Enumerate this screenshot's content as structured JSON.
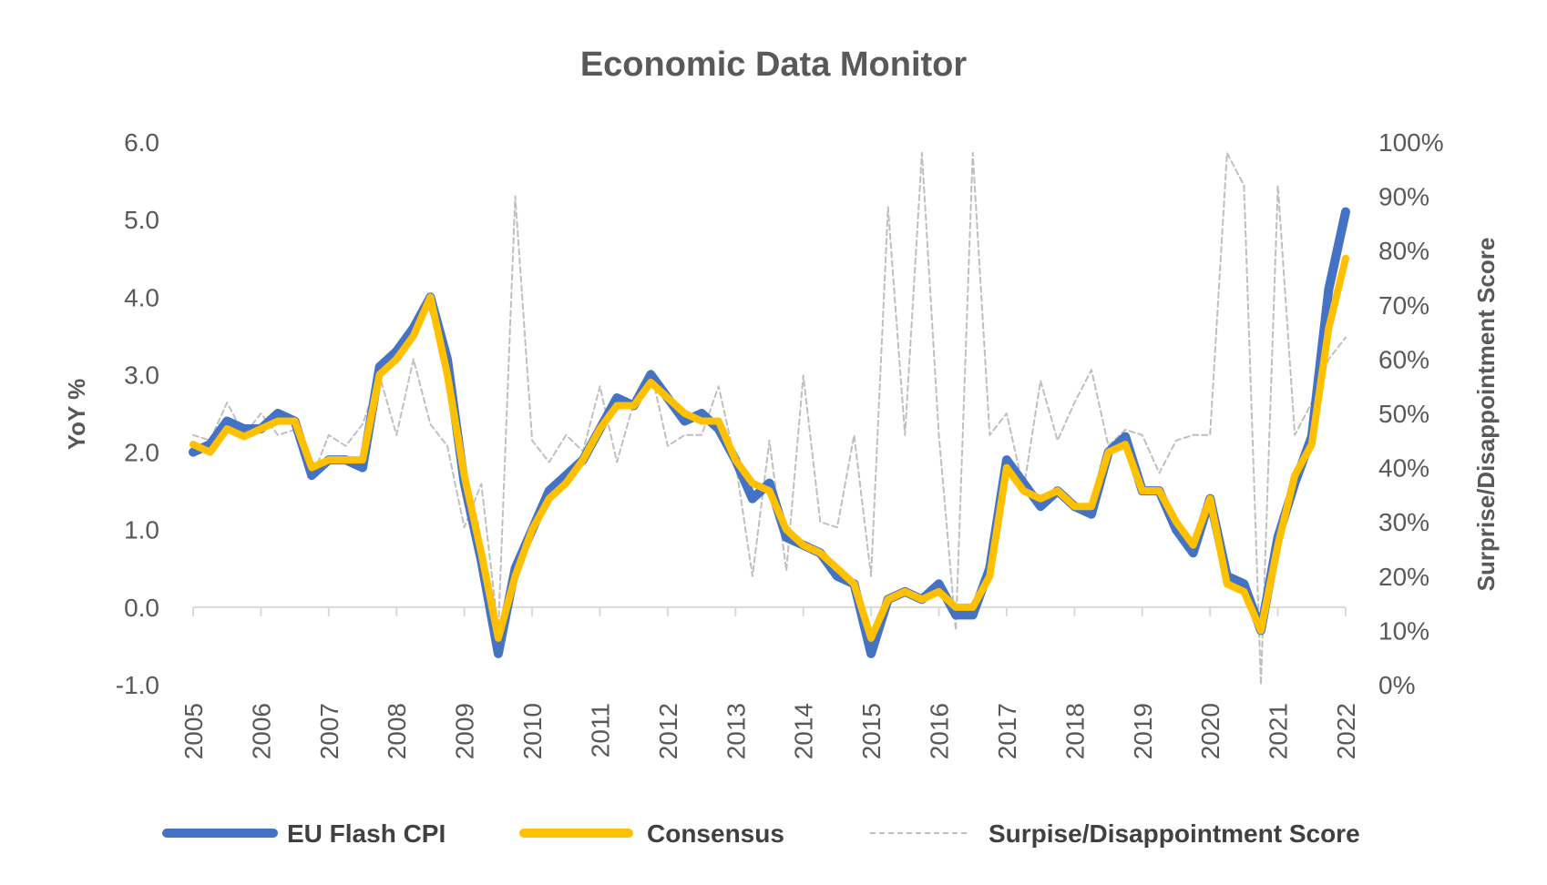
{
  "chart_data": {
    "type": "line",
    "title": "Economic Data Monitor",
    "xlabel": "",
    "ylabel": "YoY %",
    "y2label": "Surprise/Disappointment Score",
    "xlim": [
      2005,
      2022
    ],
    "ylim": [
      -1.0,
      6.0
    ],
    "y2lim": [
      0,
      1.0
    ],
    "x_ticks": [
      "2005",
      "2006",
      "2007",
      "2008",
      "2009",
      "2010",
      "2011",
      "2012",
      "2013",
      "2014",
      "2015",
      "2016",
      "2017",
      "2018",
      "2019",
      "2020",
      "2021",
      "2022"
    ],
    "y_ticks": [
      "-1.0",
      "0.0",
      "1.0",
      "2.0",
      "3.0",
      "4.0",
      "5.0",
      "6.0"
    ],
    "y2_ticks": [
      "0%",
      "10%",
      "20%",
      "30%",
      "40%",
      "50%",
      "60%",
      "70%",
      "80%",
      "90%",
      "100%"
    ],
    "grid": false,
    "legend_position": "bottom",
    "legend": [
      "EU Flash CPI",
      "Consensus",
      "Surpise/Disappointment Score"
    ],
    "x": [
      2005.0,
      2005.25,
      2005.5,
      2005.75,
      2006.0,
      2006.25,
      2006.5,
      2006.75,
      2007.0,
      2007.25,
      2007.5,
      2007.75,
      2008.0,
      2008.25,
      2008.5,
      2008.75,
      2009.0,
      2009.25,
      2009.5,
      2009.75,
      2010.0,
      2010.25,
      2010.5,
      2010.75,
      2011.0,
      2011.25,
      2011.5,
      2011.75,
      2012.0,
      2012.25,
      2012.5,
      2012.75,
      2013.0,
      2013.25,
      2013.5,
      2013.75,
      2014.0,
      2014.25,
      2014.5,
      2014.75,
      2015.0,
      2015.25,
      2015.5,
      2015.75,
      2016.0,
      2016.25,
      2016.5,
      2016.75,
      2017.0,
      2017.25,
      2017.5,
      2017.75,
      2018.0,
      2018.25,
      2018.5,
      2018.75,
      2019.0,
      2019.25,
      2019.5,
      2019.75,
      2020.0,
      2020.25,
      2020.5,
      2020.75,
      2021.0,
      2021.25,
      2021.5,
      2021.75,
      2022.0
    ],
    "series": [
      {
        "name": "EU Flash CPI",
        "axis": "left",
        "color": "#4472C4",
        "values": [
          2.0,
          2.1,
          2.4,
          2.3,
          2.3,
          2.5,
          2.4,
          1.7,
          1.9,
          1.9,
          1.8,
          3.1,
          3.3,
          3.6,
          4.0,
          3.2,
          1.6,
          0.6,
          -0.6,
          0.5,
          1.0,
          1.5,
          1.7,
          1.9,
          2.3,
          2.7,
          2.6,
          3.0,
          2.7,
          2.4,
          2.5,
          2.3,
          1.9,
          1.4,
          1.6,
          0.9,
          0.8,
          0.7,
          0.4,
          0.3,
          -0.6,
          0.1,
          0.2,
          0.1,
          0.3,
          -0.1,
          -0.1,
          0.5,
          1.9,
          1.6,
          1.3,
          1.5,
          1.3,
          1.2,
          2.0,
          2.2,
          1.5,
          1.5,
          1.0,
          0.7,
          1.4,
          0.4,
          0.3,
          -0.3,
          0.9,
          1.6,
          2.2,
          4.1,
          5.1
        ]
      },
      {
        "name": "Consensus",
        "axis": "left",
        "color": "#FFC000",
        "values": [
          2.1,
          2.0,
          2.3,
          2.2,
          2.3,
          2.4,
          2.4,
          1.8,
          1.9,
          1.9,
          1.9,
          3.0,
          3.2,
          3.5,
          4.0,
          3.0,
          1.7,
          0.7,
          -0.4,
          0.4,
          1.0,
          1.4,
          1.6,
          1.9,
          2.3,
          2.6,
          2.6,
          2.9,
          2.7,
          2.5,
          2.4,
          2.4,
          1.9,
          1.6,
          1.5,
          1.0,
          0.8,
          0.7,
          0.5,
          0.3,
          -0.4,
          0.1,
          0.2,
          0.1,
          0.2,
          0.0,
          0.0,
          0.4,
          1.8,
          1.5,
          1.4,
          1.5,
          1.3,
          1.3,
          2.0,
          2.1,
          1.5,
          1.5,
          1.1,
          0.8,
          1.4,
          0.3,
          0.2,
          -0.3,
          0.8,
          1.7,
          2.1,
          3.6,
          4.5
        ]
      },
      {
        "name": "Surpise/Disappointment Score",
        "axis": "right",
        "color": "#BFBFBF",
        "style": "dashed",
        "values": [
          0.46,
          0.45,
          0.52,
          0.46,
          0.5,
          0.46,
          0.47,
          0.38,
          0.46,
          0.44,
          0.48,
          0.57,
          0.46,
          0.6,
          0.48,
          0.44,
          0.29,
          0.37,
          0.1,
          0.9,
          0.45,
          0.41,
          0.46,
          0.43,
          0.55,
          0.41,
          0.52,
          0.58,
          0.44,
          0.46,
          0.46,
          0.55,
          0.41,
          0.2,
          0.45,
          0.21,
          0.57,
          0.3,
          0.29,
          0.46,
          0.2,
          0.88,
          0.46,
          0.98,
          0.46,
          0.1,
          0.98,
          0.46,
          0.5,
          0.36,
          0.56,
          0.45,
          0.52,
          0.58,
          0.44,
          0.47,
          0.46,
          0.39,
          0.45,
          0.46,
          0.46,
          0.98,
          0.92,
          0.0,
          0.92,
          0.46,
          0.52,
          0.6,
          0.64
        ]
      }
    ]
  }
}
